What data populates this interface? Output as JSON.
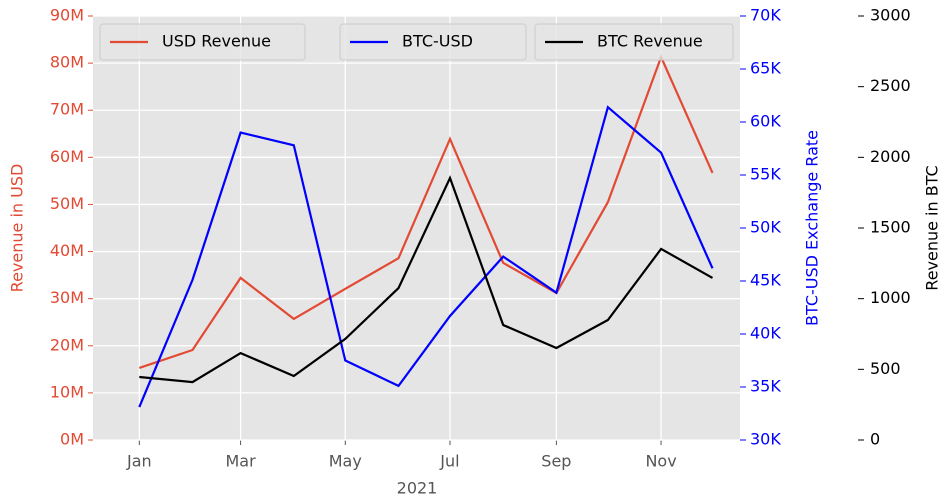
{
  "chart_data": {
    "type": "line",
    "xlabel": "2021",
    "ylabel": "Revenue in USD",
    "y2label": "BTC-USD Exchange Rate",
    "y3label": "Revenue in BTC",
    "x": [
      "2021-01-01",
      "2021-02-01",
      "2021-03-01",
      "2021-04-01",
      "2021-05-01",
      "2021-06-01",
      "2021-07-01",
      "2021-08-01",
      "2021-09-01",
      "2021-10-01",
      "2021-11-01",
      "2021-12-01"
    ],
    "xlim": [
      "2020-12-05",
      "2021-12-17"
    ],
    "xticks": [
      {
        "value": "2021-01-01",
        "label": "Jan"
      },
      {
        "value": "2021-03-01",
        "label": "Mar"
      },
      {
        "value": "2021-05-01",
        "label": "May"
      },
      {
        "value": "2021-07-01",
        "label": "Jul"
      },
      {
        "value": "2021-09-01",
        "label": "Sep"
      },
      {
        "value": "2021-11-01",
        "label": "Nov"
      }
    ],
    "ylim": [
      0,
      90000000
    ],
    "yticks": [
      {
        "value": 0,
        "label": "0M"
      },
      {
        "value": 10000000,
        "label": "10M"
      },
      {
        "value": 20000000,
        "label": "20M"
      },
      {
        "value": 30000000,
        "label": "30M"
      },
      {
        "value": 40000000,
        "label": "40M"
      },
      {
        "value": 50000000,
        "label": "50M"
      },
      {
        "value": 60000000,
        "label": "60M"
      },
      {
        "value": 70000000,
        "label": "70M"
      },
      {
        "value": 80000000,
        "label": "80M"
      },
      {
        "value": 90000000,
        "label": "90M"
      }
    ],
    "y2lim": [
      30000,
      70000
    ],
    "y2ticks": [
      {
        "value": 30000,
        "label": "30K"
      },
      {
        "value": 35000,
        "label": "35K"
      },
      {
        "value": 40000,
        "label": "40K"
      },
      {
        "value": 45000,
        "label": "45K"
      },
      {
        "value": 50000,
        "label": "50K"
      },
      {
        "value": 55000,
        "label": "55K"
      },
      {
        "value": 60000,
        "label": "60K"
      },
      {
        "value": 65000,
        "label": "65K"
      },
      {
        "value": 70000,
        "label": "70K"
      }
    ],
    "y3lim": [
      0,
      3000
    ],
    "y3ticks": [
      0,
      500,
      1000,
      1500,
      2000,
      2500,
      3000
    ],
    "grid": true,
    "series": [
      {
        "name": "USD Revenue",
        "color": "#e24a33",
        "axis": "y",
        "values": [
          15300000,
          19100000,
          34400000,
          25700000,
          32100000,
          38600000,
          63900000,
          37600000,
          31200000,
          50500000,
          81300000,
          56700000
        ]
      },
      {
        "name": "BTC-USD",
        "color": "#0000ff",
        "axis": "y2",
        "values": [
          33100,
          45100,
          59000,
          57800,
          37500,
          35100,
          41700,
          47300,
          43900,
          61400,
          57100,
          46200
        ]
      },
      {
        "name": "BTC Revenue",
        "color": "#000000",
        "axis": "y3",
        "values": [
          446,
          410,
          615,
          453,
          715,
          1075,
          1854,
          814,
          651,
          849,
          1352,
          1147
        ]
      }
    ]
  }
}
